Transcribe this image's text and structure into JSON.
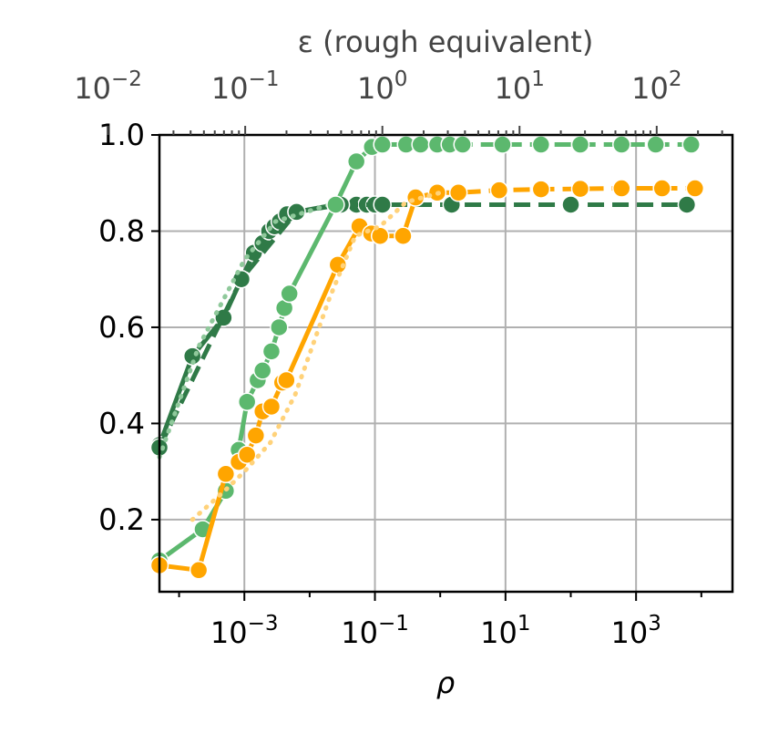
{
  "chart_data": {
    "type": "line",
    "xlabel": "ρ",
    "x2label": "ε (rough equivalent)",
    "xscale": "log",
    "xlim": [
      5e-05,
      30000
    ],
    "ylim": [
      0.05,
      1.0
    ],
    "grid": true,
    "y_ticks": [
      "0.2",
      "0.4",
      "0.6",
      "0.8",
      "1.0"
    ],
    "x_ticks": [
      {
        "base": "10",
        "exp": "−3",
        "value": 0.001
      },
      {
        "base": "10",
        "exp": "−1",
        "value": 0.1
      },
      {
        "base": "10",
        "exp": "1",
        "value": 10
      },
      {
        "base": "10",
        "exp": "3",
        "value": 1000
      }
    ],
    "x2_ticks": [
      {
        "base": "10",
        "exp": "−2",
        "value": 0.01
      },
      {
        "base": "10",
        "exp": "−1",
        "value": 0.1
      },
      {
        "base": "10",
        "exp": "0",
        "value": 1
      },
      {
        "base": "10",
        "exp": "1",
        "value": 10
      },
      {
        "base": "10",
        "exp": "2",
        "value": 100
      }
    ],
    "x2_map": {
      "eps_ref": [
        0.1,
        1
      ],
      "rho_ref": [
        0.00103,
        0.13
      ]
    },
    "series": [
      {
        "color": "#2f7a47",
        "style": "solid-markers",
        "x": [
          5e-05,
          0.00016,
          0.00048,
          0.0009,
          0.0014,
          0.0019,
          0.0024,
          0.0029,
          0.0035,
          0.0045,
          0.0063,
          0.025,
          0.052,
          0.075,
          0.1,
          0.13
        ],
        "y": [
          0.355,
          0.54,
          0.62,
          0.7,
          0.755,
          0.775,
          0.8,
          0.81,
          0.82,
          0.835,
          0.84,
          0.855,
          0.855,
          0.855,
          0.855,
          0.855
        ]
      },
      {
        "color": "#2f7a47",
        "style": "dashed",
        "x": [
          5e-05,
          0.0009,
          0.0063,
          0.03,
          0.13,
          1.5,
          100,
          6000
        ],
        "y": [
          0.35,
          0.7,
          0.84,
          0.855,
          0.855,
          0.855,
          0.855,
          0.855
        ]
      },
      {
        "color": "#8fc99b",
        "style": "dotted",
        "x": [
          5e-05,
          0.0002,
          0.001,
          0.003,
          0.02
        ],
        "y": [
          0.33,
          0.56,
          0.74,
          0.82,
          0.855
        ]
      },
      {
        "color": "#5cb86e",
        "style": "solid-markers",
        "x": [
          5e-05,
          0.00023,
          0.00052,
          0.00082,
          0.0011,
          0.0016,
          0.0019,
          0.0026,
          0.0034,
          0.0041,
          0.0049,
          0.025,
          0.052,
          0.09,
          0.13
        ],
        "y": [
          0.115,
          0.18,
          0.26,
          0.345,
          0.445,
          0.49,
          0.51,
          0.55,
          0.6,
          0.64,
          0.67,
          0.855,
          0.945,
          0.975,
          0.98
        ]
      },
      {
        "color": "#5cb86e",
        "style": "dashed",
        "x": [
          0.13,
          0.3,
          0.5,
          0.9,
          1.4,
          2.2,
          9,
          35,
          140,
          600,
          2000,
          7000
        ],
        "y": [
          0.98,
          0.98,
          0.98,
          0.98,
          0.98,
          0.98,
          0.98,
          0.98,
          0.98,
          0.98,
          0.98,
          0.98
        ]
      },
      {
        "color": "#ffa500",
        "style": "solid-markers",
        "x": [
          5e-05,
          0.0002,
          0.00052,
          0.00082,
          0.0011,
          0.0015,
          0.0019,
          0.0026,
          0.0038,
          0.0044,
          0.027,
          0.058,
          0.088,
          0.12,
          0.27,
          0.42
        ],
        "y": [
          0.105,
          0.095,
          0.295,
          0.32,
          0.335,
          0.375,
          0.425,
          0.435,
          0.485,
          0.49,
          0.73,
          0.81,
          0.795,
          0.79,
          0.79,
          0.87
        ]
      },
      {
        "color": "#ffa500",
        "style": "dashed",
        "x": [
          0.42,
          0.9,
          1.9,
          8,
          35,
          140,
          600,
          2500,
          8000
        ],
        "y": [
          0.87,
          0.88,
          0.88,
          0.885,
          0.887,
          0.888,
          0.889,
          0.889,
          0.889
        ]
      },
      {
        "color": "#ffd27a",
        "style": "dotted",
        "x": [
          0.00016,
          0.0005,
          0.001,
          0.0025,
          0.006,
          0.02,
          0.05,
          0.12,
          0.3,
          1
        ],
        "y": [
          0.2,
          0.26,
          0.3,
          0.36,
          0.46,
          0.66,
          0.79,
          0.81,
          0.86,
          0.88
        ]
      }
    ]
  }
}
